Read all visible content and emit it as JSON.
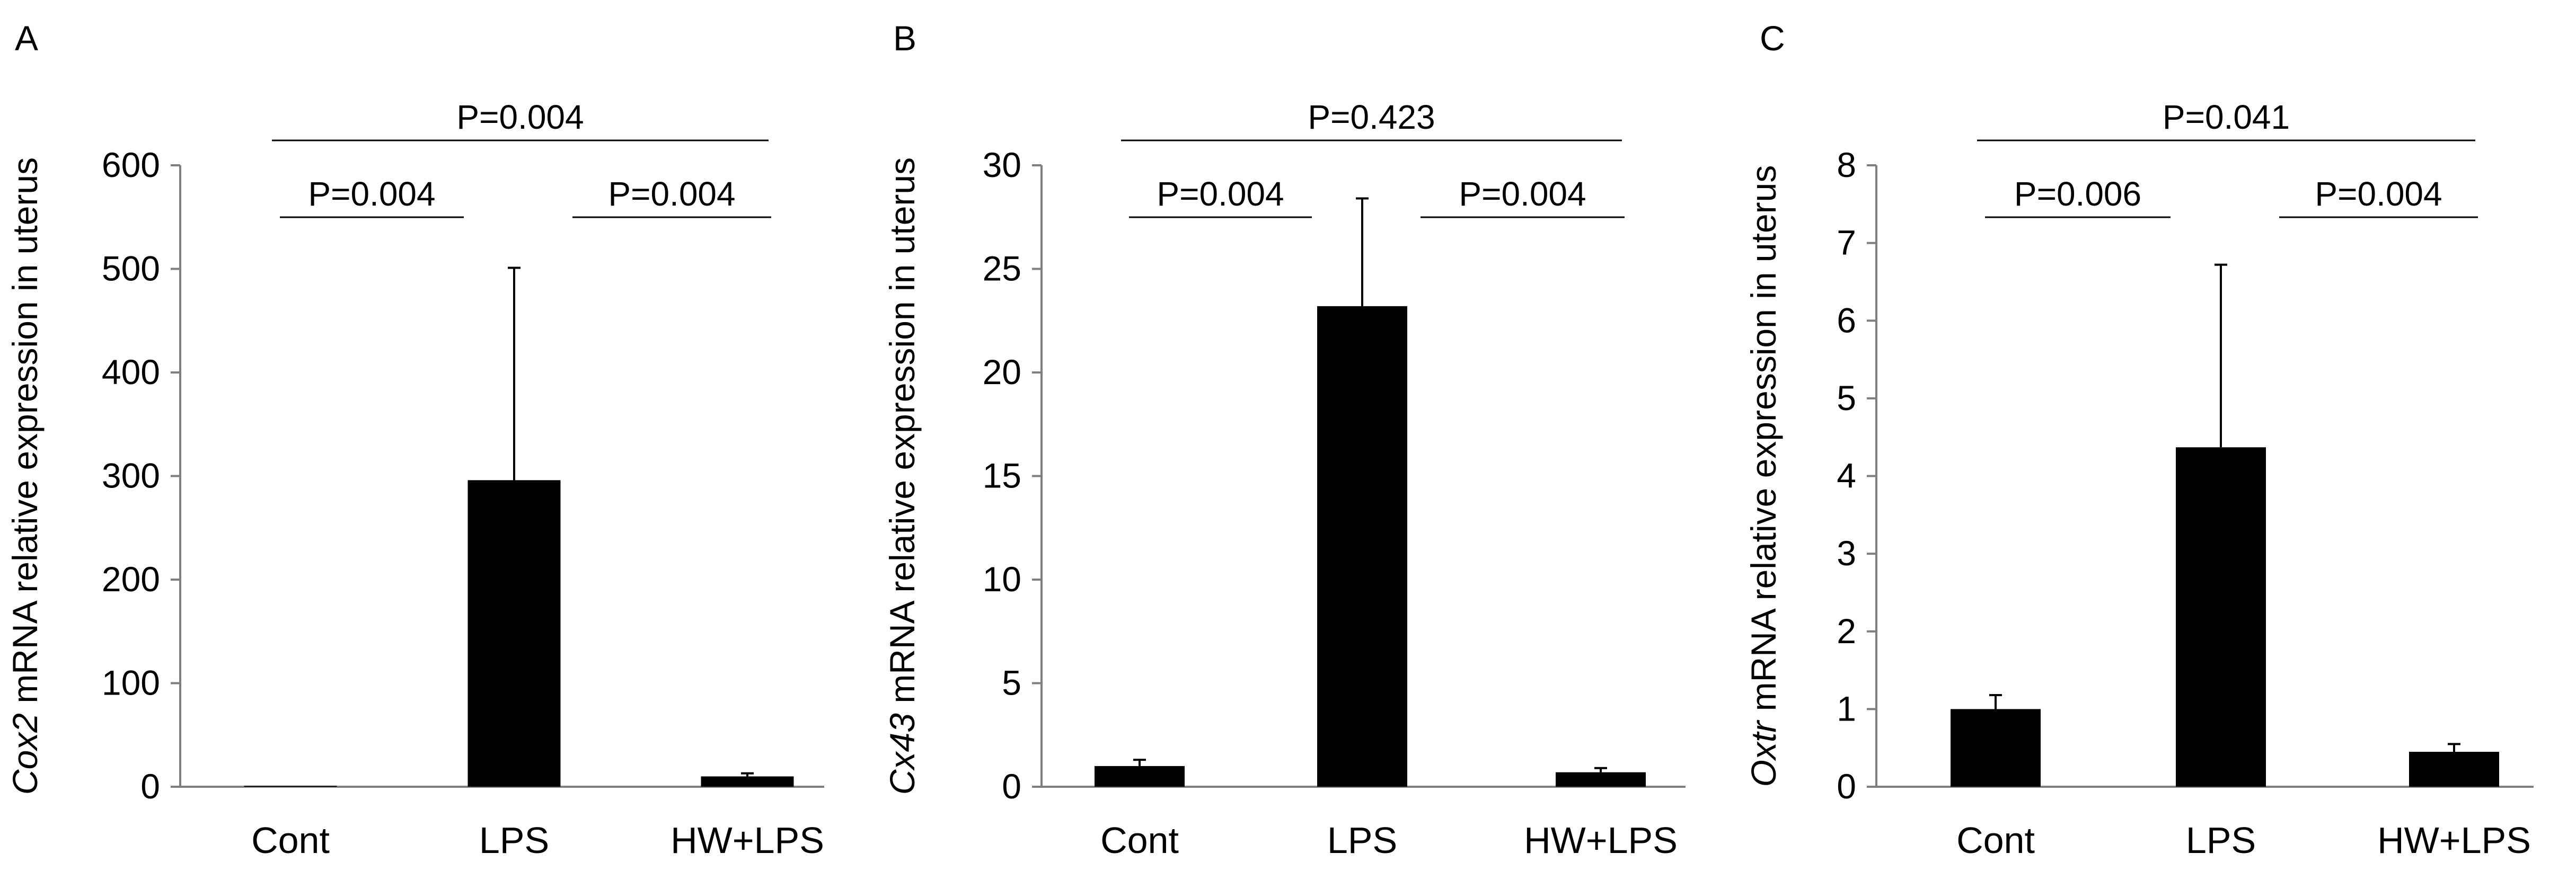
{
  "chart_data": [
    {
      "panel_label": "A",
      "type": "bar",
      "categories": [
        "Cont",
        "LPS",
        "HW+LPS"
      ],
      "values": [
        1,
        296,
        10
      ],
      "errors": [
        0,
        205,
        3
      ],
      "ylabel_italic": "Cox2",
      "ylabel_rest": " mRNA relative expression in uterus",
      "ylim": [
        0,
        600
      ],
      "yticks": [
        "0",
        "100",
        "200",
        "300",
        "400",
        "500",
        "600"
      ],
      "comparisons": [
        {
          "from": 0,
          "to": 2,
          "label": "P=0.004",
          "level": 2
        },
        {
          "from": 0,
          "to": 1,
          "label": "P=0.004",
          "level": 1
        },
        {
          "from": 1,
          "to": 2,
          "label": "P=0.004",
          "level": 1
        }
      ],
      "bar_color": "#000000"
    },
    {
      "panel_label": "B",
      "type": "bar",
      "categories": [
        "Cont",
        "LPS",
        "HW+LPS"
      ],
      "values": [
        1.0,
        23.2,
        0.7
      ],
      "errors": [
        0.3,
        5.2,
        0.2
      ],
      "ylabel_italic": "Cx43",
      "ylabel_rest": " mRNA relative expression in uterus",
      "ylim": [
        0,
        30
      ],
      "yticks": [
        "0",
        "5",
        "10",
        "15",
        "20",
        "25",
        "30"
      ],
      "comparisons": [
        {
          "from": 0,
          "to": 2,
          "label": "P=0.423",
          "level": 2
        },
        {
          "from": 0,
          "to": 1,
          "label": "P=0.004",
          "level": 1
        },
        {
          "from": 1,
          "to": 2,
          "label": "P=0.004",
          "level": 1
        }
      ],
      "bar_color": "#000000"
    },
    {
      "panel_label": "C",
      "type": "bar",
      "categories": [
        "Cont",
        "LPS",
        "HW+LPS"
      ],
      "values": [
        1.0,
        4.37,
        0.45
      ],
      "errors": [
        0.18,
        2.35,
        0.1
      ],
      "ylabel_italic": "Oxtr",
      "ylabel_rest": " mRNA relative expression in uterus",
      "ylim": [
        0,
        8
      ],
      "yticks": [
        "0",
        "1",
        "2",
        "3",
        "4",
        "5",
        "6",
        "7",
        "8"
      ],
      "comparisons": [
        {
          "from": 0,
          "to": 2,
          "label": "P=0.041",
          "level": 2
        },
        {
          "from": 0,
          "to": 1,
          "label": "P=0.006",
          "level": 1
        },
        {
          "from": 1,
          "to": 2,
          "label": "P=0.004",
          "level": 1
        }
      ],
      "bar_color": "#000000"
    }
  ]
}
